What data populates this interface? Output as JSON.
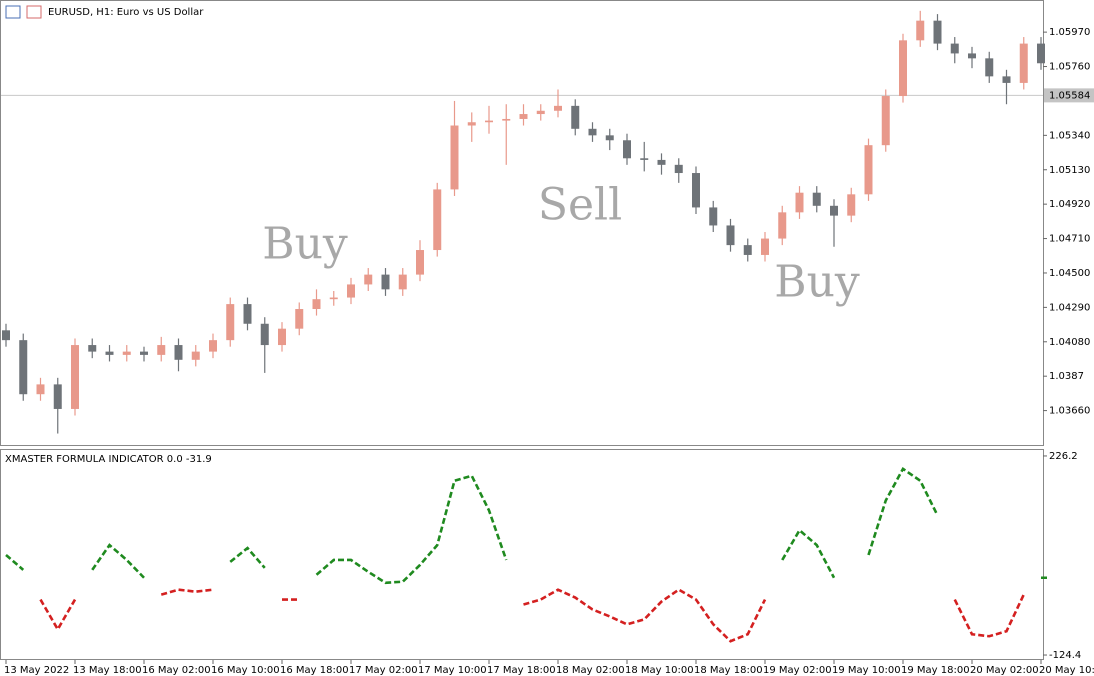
{
  "chart_data": [
    {
      "type": "candlestick",
      "title": "EURUSD, H1: Euro vs US Dollar",
      "categories": [
        "13 May 2022",
        null,
        null,
        null,
        "13 May 18:00",
        null,
        null,
        null,
        "16 May 02:00",
        null,
        null,
        null,
        "16 May 10:00",
        null,
        null,
        null,
        "16 May 18:00",
        null,
        null,
        null,
        "17 May 02:00",
        null,
        null,
        null,
        "17 May 10:00",
        null,
        null,
        null,
        "17 May 18:00",
        null,
        null,
        null,
        "18 May 02:00",
        null,
        null,
        null,
        "18 May 10:00",
        null,
        null,
        null,
        "18 May 18:00",
        null,
        null,
        null,
        "19 May 02:00",
        null,
        null,
        null,
        "19 May 10:00",
        null,
        null,
        null,
        "19 May 18:00",
        null,
        null,
        null,
        "20 May 02:00",
        null,
        null,
        null,
        "20 May 10:00"
      ],
      "open": [
        1.0415,
        1.0409,
        1.0376,
        1.0382,
        1.0367,
        1.0406,
        1.0402,
        1.04,
        1.0402,
        1.04,
        1.0406,
        1.0397,
        1.0402,
        1.0409,
        1.0431,
        1.0419,
        1.0406,
        1.0416,
        1.0428,
        1.0434,
        1.0435,
        1.0443,
        1.0449,
        1.044,
        1.0449,
        1.0464,
        1.0501,
        1.054,
        1.0542,
        1.0543,
        1.0544,
        1.0547,
        1.0549,
        1.0552,
        1.0538,
        1.0534,
        1.0531,
        1.052,
        1.0519,
        1.0516,
        1.0511,
        1.049,
        1.0479,
        1.0467,
        1.0461,
        1.0471,
        1.0487,
        1.0499,
        1.0491,
        1.0485,
        1.0498,
        1.0528,
        1.0558,
        1.0592,
        1.0604,
        1.059,
        1.0584,
        1.0581,
        1.057,
        1.0566,
        1.059
      ],
      "high": [
        1.0419,
        1.0413,
        1.0386,
        1.0386,
        1.041,
        1.041,
        1.0406,
        1.0406,
        1.0405,
        1.0411,
        1.041,
        1.0406,
        1.0413,
        1.0435,
        1.0435,
        1.0423,
        1.042,
        1.0432,
        1.044,
        1.0439,
        1.0447,
        1.0453,
        1.0453,
        1.0453,
        1.047,
        1.0505,
        1.0555,
        1.0548,
        1.0552,
        1.0553,
        1.0553,
        1.0553,
        1.0562,
        1.0556,
        1.0542,
        1.0538,
        1.0535,
        1.053,
        1.0523,
        1.052,
        1.0515,
        1.0494,
        1.0483,
        1.0471,
        1.0475,
        1.0491,
        1.0503,
        1.0503,
        1.0495,
        1.0502,
        1.0532,
        1.0562,
        1.0596,
        1.061,
        1.0608,
        1.0594,
        1.0588,
        1.0585,
        1.0574,
        1.0594,
        1.0594
      ],
      "low": [
        1.0405,
        1.0372,
        1.0372,
        1.0352,
        1.0363,
        1.0398,
        1.0396,
        1.0396,
        1.0396,
        1.0396,
        1.039,
        1.0393,
        1.0398,
        1.0405,
        1.0415,
        1.0389,
        1.0402,
        1.0412,
        1.0424,
        1.043,
        1.0431,
        1.0439,
        1.0436,
        1.0436,
        1.0445,
        1.046,
        1.0497,
        1.053,
        1.0535,
        1.0516,
        1.054,
        1.0543,
        1.0545,
        1.0534,
        1.053,
        1.0525,
        1.0516,
        1.0512,
        1.051,
        1.0505,
        1.0486,
        1.0475,
        1.0463,
        1.0457,
        1.0457,
        1.0467,
        1.0483,
        1.0487,
        1.0466,
        1.0481,
        1.0494,
        1.0524,
        1.0554,
        1.0588,
        1.0586,
        1.0578,
        1.0575,
        1.0566,
        1.0553,
        1.0562,
        1.0574
      ],
      "close": [
        1.0409,
        1.0376,
        1.0382,
        1.0367,
        1.0406,
        1.0402,
        1.04,
        1.0402,
        1.04,
        1.0406,
        1.0397,
        1.0402,
        1.0409,
        1.0431,
        1.0419,
        1.0406,
        1.0416,
        1.0428,
        1.0434,
        1.0435,
        1.0443,
        1.0449,
        1.044,
        1.0449,
        1.0464,
        1.0501,
        1.054,
        1.0542,
        1.0543,
        1.0544,
        1.0547,
        1.0549,
        1.0552,
        1.0538,
        1.0534,
        1.0531,
        1.052,
        1.0519,
        1.0516,
        1.0511,
        1.049,
        1.0479,
        1.0467,
        1.0461,
        1.0471,
        1.0487,
        1.0499,
        1.0491,
        1.0485,
        1.0498,
        1.0528,
        1.0558,
        1.0592,
        1.0604,
        1.059,
        1.0584,
        1.0581,
        1.057,
        1.0566,
        1.059,
        1.0578
      ],
      "up_color": "#e8998b",
      "down_color": "#6e7378",
      "ylim": [
        1.0345,
        1.0616
      ],
      "yticks": [
        {
          "value": 1.0366,
          "label": "1.03660"
        },
        1.0387,
        {
          "value": 1.0408,
          "label": "1.04080"
        },
        {
          "value": 1.0429,
          "label": "1.04290"
        },
        {
          "value": 1.045,
          "label": "1.04500"
        },
        {
          "value": 1.0471,
          "label": "1.04710"
        },
        {
          "value": 1.0492,
          "label": "1.04920"
        },
        {
          "value": 1.0513,
          "label": "1.05130"
        },
        {
          "value": 1.0534,
          "label": "1.05340"
        },
        {
          "value": 1.0576,
          "label": "1.05760"
        },
        {
          "value": 1.0597,
          "label": "1.05970"
        }
      ],
      "current_price": 1.05584,
      "annotations": [
        "Buy",
        "Sell",
        "Buy"
      ]
    },
    {
      "type": "line",
      "title": "XMASTER FORMULA INDICATOR 0.0 -31.9",
      "series": [
        {
          "color": "#1f8a1f",
          "values": [
            51.8,
            25.6,
            null,
            null,
            null,
            25.6,
            69.2,
            43.0,
            11.7,
            null,
            null,
            null,
            null,
            39.6,
            64.0,
            29.1,
            null,
            null,
            16.9,
            43.0,
            43.0,
            22.1,
            2.9,
            4.7,
            34.3,
            69.2,
            182.6,
            191.3,
            130.3,
            43.0,
            null,
            null,
            null,
            null,
            null,
            null,
            null,
            null,
            null,
            null,
            null,
            null,
            null,
            null,
            null,
            43.0,
            95.4,
            69.2,
            11.7,
            null,
            51.8,
            147.7,
            203.5,
            182.6,
            121.5,
            null,
            null,
            null,
            null,
            null,
            11.7
          ]
        },
        {
          "color": "#d42020",
          "values": [
            null,
            null,
            -26.7,
            -79.1,
            -26.7,
            null,
            null,
            null,
            null,
            -18.0,
            -9.3,
            -12.8,
            -9.3,
            null,
            null,
            null,
            -26.7,
            -26.7,
            null,
            null,
            null,
            null,
            null,
            null,
            null,
            null,
            null,
            null,
            null,
            null,
            -35.4,
            -26.7,
            -9.3,
            -23.2,
            -44.2,
            -56.4,
            -70.3,
            -61.6,
            -30.2,
            -9.3,
            -26.7,
            -70.3,
            -100.0,
            -87.8,
            -26.7,
            null,
            null,
            null,
            null,
            null,
            null,
            null,
            null,
            null,
            null,
            -26.7,
            -87.8,
            -91.3,
            -82.5,
            -18.0,
            null
          ]
        }
      ],
      "ylim": [
        -131.4,
        236.7
      ],
      "yticks": [
        226.2,
        -124.4
      ]
    }
  ]
}
